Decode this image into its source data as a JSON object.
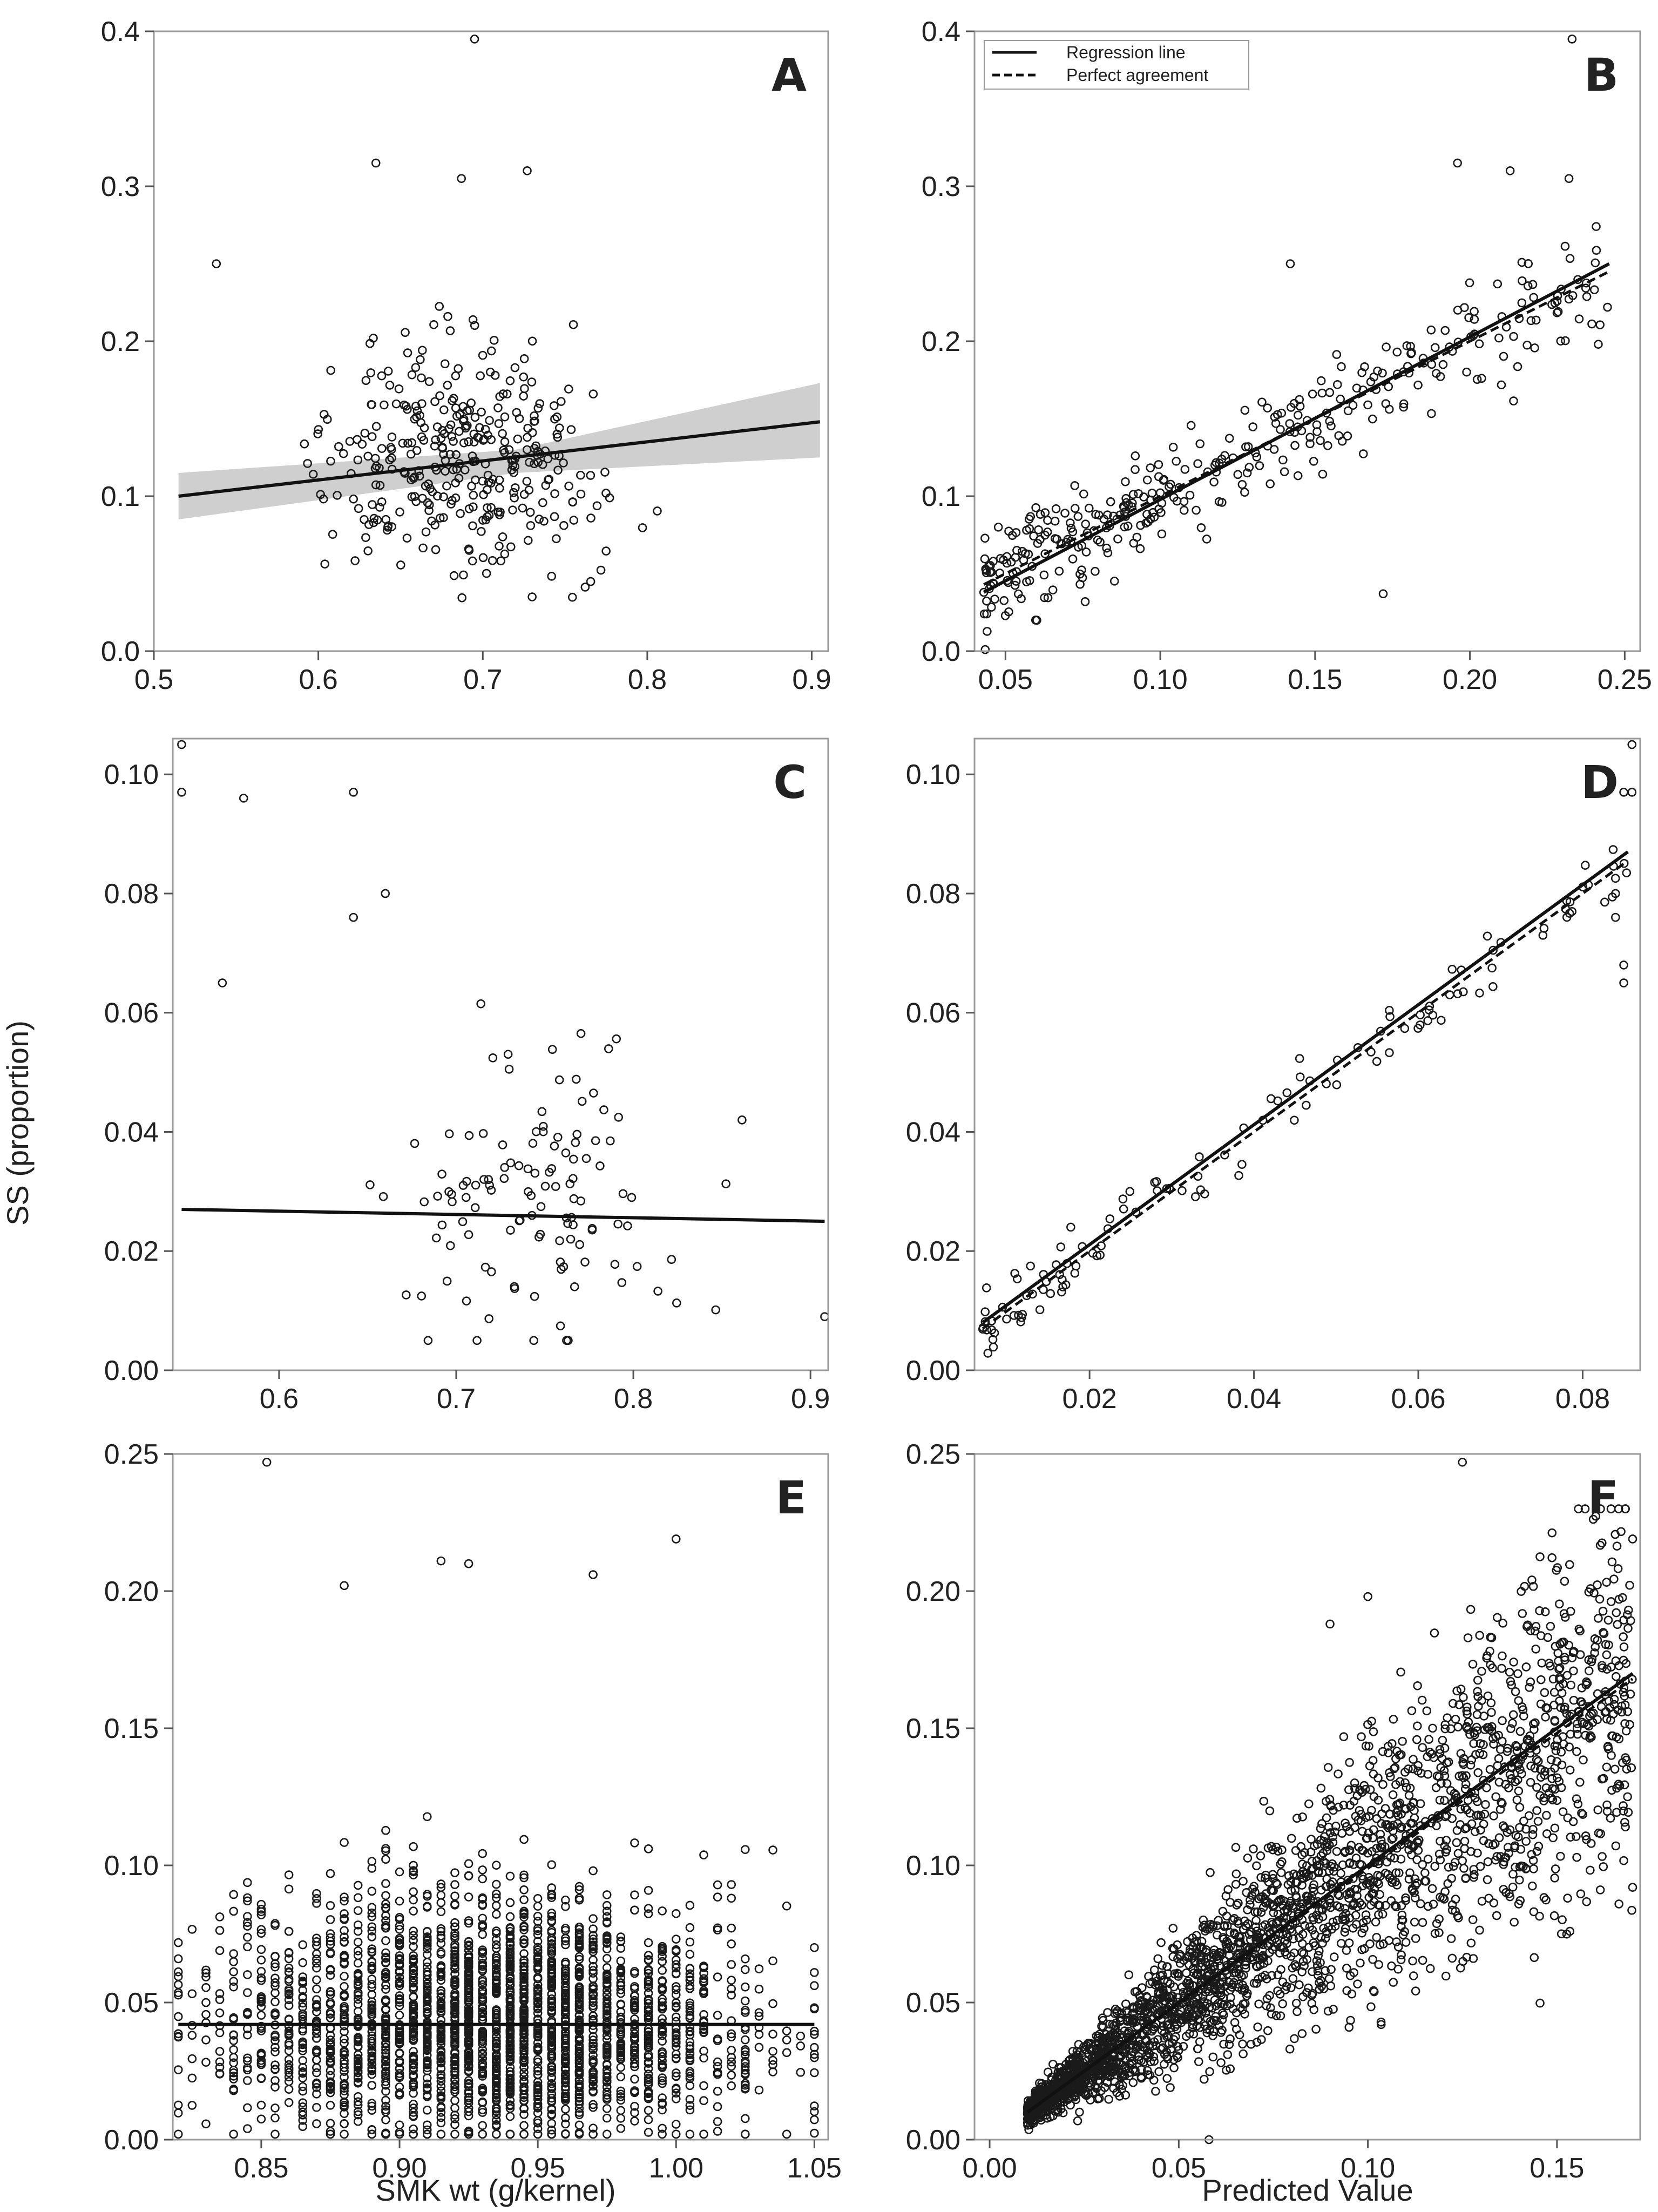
{
  "figure": {
    "y_axis_title": "SS (proportion)",
    "left_x_axis_title": "SMK wt (g/kernel)",
    "right_x_axis_title": "Predicted Value",
    "legend": {
      "solid": "Regression line",
      "dashed": "Perfect agreement"
    }
  },
  "chart_data": [
    {
      "panel": "A",
      "type": "scatter",
      "xlim": [
        0.5,
        0.91
      ],
      "ylim": [
        0.0,
        0.4
      ],
      "xticks": [
        0.5,
        0.6,
        0.7,
        0.8,
        0.9
      ],
      "xtick_labels": [
        "0.5",
        "0.6",
        "0.7",
        "0.8",
        "0.9"
      ],
      "yticks": [
        0.0,
        0.1,
        0.2,
        0.3,
        0.4
      ],
      "ytick_labels": [
        "0.0",
        "0.1",
        "0.2",
        "0.3",
        "0.4"
      ],
      "n_points": 360,
      "point_cloud": {
        "x_mean": 0.685,
        "x_sd": 0.062,
        "y_mean": 0.125,
        "y_sd": 0.05,
        "x_range": [
          0.515,
          0.875
        ],
        "y_range": [
          0.022,
          0.395
        ]
      },
      "highlighted_points": [
        [
          0.695,
          0.395
        ],
        [
          0.635,
          0.315
        ],
        [
          0.727,
          0.31
        ],
        [
          0.687,
          0.305
        ],
        [
          0.538,
          0.25
        ],
        [
          0.73,
          0.035
        ]
      ],
      "regression_line": {
        "x": [
          0.515,
          0.905
        ],
        "y": [
          0.1,
          0.148
        ]
      },
      "confidence_band": {
        "x": [
          0.515,
          0.72,
          0.905
        ],
        "lower": [
          0.085,
          0.115,
          0.125
        ],
        "upper": [
          0.115,
          0.13,
          0.173
        ]
      }
    },
    {
      "panel": "B",
      "type": "scatter",
      "xlim": [
        0.04,
        0.255
      ],
      "ylim": [
        0.0,
        0.4
      ],
      "xticks": [
        0.05,
        0.1,
        0.15,
        0.2,
        0.25
      ],
      "xtick_labels": [
        "0.05",
        "0.10",
        "0.15",
        "0.20",
        "0.25"
      ],
      "yticks": [
        0.0,
        0.1,
        0.2,
        0.3,
        0.4
      ],
      "ytick_labels": [
        "0.0",
        "0.1",
        "0.2",
        "0.3",
        "0.4"
      ],
      "n_points": 360,
      "point_cloud": {
        "x_range": [
          0.043,
          0.245
        ],
        "relation": "y ~ x",
        "noise_sd": 0.028
      },
      "highlighted_points": [
        [
          0.233,
          0.395
        ],
        [
          0.196,
          0.315
        ],
        [
          0.213,
          0.31
        ],
        [
          0.232,
          0.305
        ],
        [
          0.142,
          0.25
        ],
        [
          0.172,
          0.037
        ]
      ],
      "regression_line": {
        "x": [
          0.043,
          0.245
        ],
        "y": [
          0.038,
          0.25
        ]
      },
      "perfect_agreement_line": {
        "x": [
          0.043,
          0.245
        ],
        "y": [
          0.043,
          0.245
        ]
      }
    },
    {
      "panel": "C",
      "type": "scatter",
      "xlim": [
        0.54,
        0.91
      ],
      "ylim": [
        0.0,
        0.106
      ],
      "xticks": [
        0.6,
        0.7,
        0.8,
        0.9
      ],
      "xtick_labels": [
        "0.6",
        "0.7",
        "0.8",
        "0.9"
      ],
      "yticks": [
        0.0,
        0.02,
        0.04,
        0.06,
        0.08,
        0.1
      ],
      "ytick_labels": [
        "0.00",
        "0.02",
        "0.04",
        "0.06",
        "0.08",
        "0.10"
      ],
      "n_points": 130,
      "point_cloud": {
        "x_mean": 0.74,
        "x_sd": 0.06,
        "y_mean": 0.03,
        "y_sd": 0.018,
        "x_range": [
          0.545,
          0.905
        ],
        "y_range": [
          0.005,
          0.075
        ]
      },
      "highlighted_points": [
        [
          0.545,
          0.105
        ],
        [
          0.545,
          0.097
        ],
        [
          0.58,
          0.096
        ],
        [
          0.642,
          0.097
        ],
        [
          0.66,
          0.08
        ],
        [
          0.642,
          0.076
        ],
        [
          0.568,
          0.065
        ],
        [
          0.908,
          0.009
        ]
      ],
      "regression_line": {
        "x": [
          0.545,
          0.908
        ],
        "y": [
          0.027,
          0.025
        ]
      }
    },
    {
      "panel": "D",
      "type": "scatter",
      "xlim": [
        0.006,
        0.087
      ],
      "ylim": [
        0.0,
        0.106
      ],
      "xticks": [
        0.02,
        0.04,
        0.06,
        0.08
      ],
      "xtick_labels": [
        "0.02",
        "0.04",
        "0.06",
        "0.08"
      ],
      "yticks": [
        0.0,
        0.02,
        0.04,
        0.06,
        0.08,
        0.1
      ],
      "ytick_labels": [
        "0.00",
        "0.02",
        "0.04",
        "0.06",
        "0.08",
        "0.10"
      ],
      "n_points": 130,
      "point_cloud": {
        "x_range": [
          0.007,
          0.086
        ],
        "relation": "y ~ x",
        "noise_sd": 0.0045
      },
      "highlighted_points": [
        [
          0.086,
          0.105
        ],
        [
          0.085,
          0.097
        ],
        [
          0.086,
          0.097
        ],
        [
          0.084,
          0.08
        ],
        [
          0.084,
          0.076
        ],
        [
          0.085,
          0.068
        ],
        [
          0.085,
          0.065
        ]
      ],
      "regression_line": {
        "x": [
          0.007,
          0.0855
        ],
        "y": [
          0.008,
          0.087
        ]
      },
      "perfect_agreement_line": {
        "x": [
          0.007,
          0.0855
        ],
        "y": [
          0.007,
          0.0855
        ]
      }
    },
    {
      "panel": "E",
      "type": "scatter",
      "xlim": [
        0.818,
        1.055
      ],
      "ylim": [
        0.0,
        0.25
      ],
      "xticks": [
        0.85,
        0.9,
        0.95,
        1.0,
        1.05
      ],
      "xtick_labels": [
        "0.85",
        "0.90",
        "0.95",
        "1.00",
        "1.05"
      ],
      "yticks": [
        0.0,
        0.05,
        0.1,
        0.15,
        0.2,
        0.25
      ],
      "ytick_labels": [
        "0.00",
        "0.05",
        "0.10",
        "0.15",
        "0.20",
        "0.25"
      ],
      "n_points": 2600,
      "point_cloud": {
        "x_grid_step": 0.005,
        "x_range": [
          0.82,
          1.05
        ],
        "y_mean": 0.042,
        "y_sd": 0.032,
        "y_range": [
          0.0,
          0.247
        ]
      },
      "highlighted_points": [
        [
          0.852,
          0.247
        ],
        [
          1.0,
          0.219
        ],
        [
          0.88,
          0.202
        ],
        [
          0.915,
          0.211
        ],
        [
          0.925,
          0.21
        ],
        [
          0.97,
          0.206
        ]
      ],
      "regression_line": {
        "x": [
          0.82,
          1.05
        ],
        "y": [
          0.042,
          0.042
        ]
      }
    },
    {
      "panel": "F",
      "type": "scatter",
      "xlim": [
        -0.004,
        0.172
      ],
      "ylim": [
        0.0,
        0.25
      ],
      "xticks": [
        0.0,
        0.05,
        0.1,
        0.15
      ],
      "xtick_labels": [
        "0.00",
        "0.05",
        "0.10",
        "0.15"
      ],
      "yticks": [
        0.0,
        0.05,
        0.1,
        0.15,
        0.2,
        0.25
      ],
      "ytick_labels": [
        "0.00",
        "0.05",
        "0.10",
        "0.15",
        "0.20",
        "0.25"
      ],
      "n_points": 2600,
      "point_cloud": {
        "x_range": [
          0.01,
          0.17
        ],
        "relation": "y ~ x",
        "noise_sd_fraction": 0.35
      },
      "highlighted_points": [
        [
          0.125,
          0.247
        ],
        [
          0.1,
          0.198
        ],
        [
          0.09,
          0.188
        ],
        [
          0.17,
          0.219
        ],
        [
          0.17,
          0.092
        ],
        [
          0.058,
          0.0
        ]
      ],
      "regression_line": {
        "x": [
          0.01,
          0.17
        ],
        "y": [
          0.01,
          0.17
        ]
      },
      "perfect_agreement_line": {
        "x": [
          0.01,
          0.17
        ],
        "y": [
          0.01,
          0.168
        ]
      }
    }
  ]
}
